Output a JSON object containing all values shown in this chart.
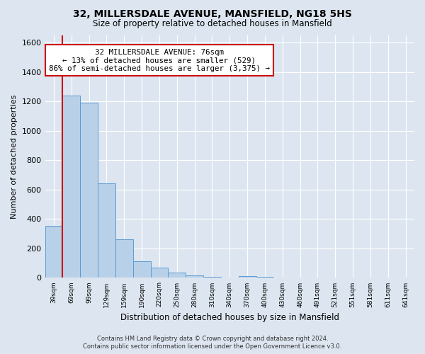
{
  "title": "32, MILLERSDALE AVENUE, MANSFIELD, NG18 5HS",
  "subtitle": "Size of property relative to detached houses in Mansfield",
  "xlabel": "Distribution of detached houses by size in Mansfield",
  "ylabel": "Number of detached properties",
  "categories": [
    "39sqm",
    "69sqm",
    "99sqm",
    "129sqm",
    "159sqm",
    "190sqm",
    "220sqm",
    "250sqm",
    "280sqm",
    "310sqm",
    "340sqm",
    "370sqm",
    "400sqm",
    "430sqm",
    "460sqm",
    "491sqm",
    "521sqm",
    "551sqm",
    "581sqm",
    "611sqm",
    "641sqm"
  ],
  "values": [
    355,
    1240,
    1190,
    645,
    260,
    115,
    70,
    35,
    15,
    5,
    0,
    10,
    5,
    0,
    0,
    0,
    0,
    0,
    0,
    0,
    0
  ],
  "bar_color": "#b8d0e8",
  "bar_edge_color": "#5b9bd5",
  "red_line_x": 1.0,
  "annotation_text_line1": "32 MILLERSDALE AVENUE: 76sqm",
  "annotation_text_line2": "← 13% of detached houses are smaller (529)",
  "annotation_text_line3": "86% of semi-detached houses are larger (3,375) →",
  "annotation_box_color": "#cc0000",
  "ylim": [
    0,
    1650
  ],
  "yticks": [
    0,
    200,
    400,
    600,
    800,
    1000,
    1200,
    1400,
    1600
  ],
  "footer_line1": "Contains HM Land Registry data © Crown copyright and database right 2024.",
  "footer_line2": "Contains public sector information licensed under the Open Government Licence v3.0.",
  "background_color": "#dde6f0",
  "plot_bg_color": "#dde6f0",
  "grid_color": "#ffffff"
}
